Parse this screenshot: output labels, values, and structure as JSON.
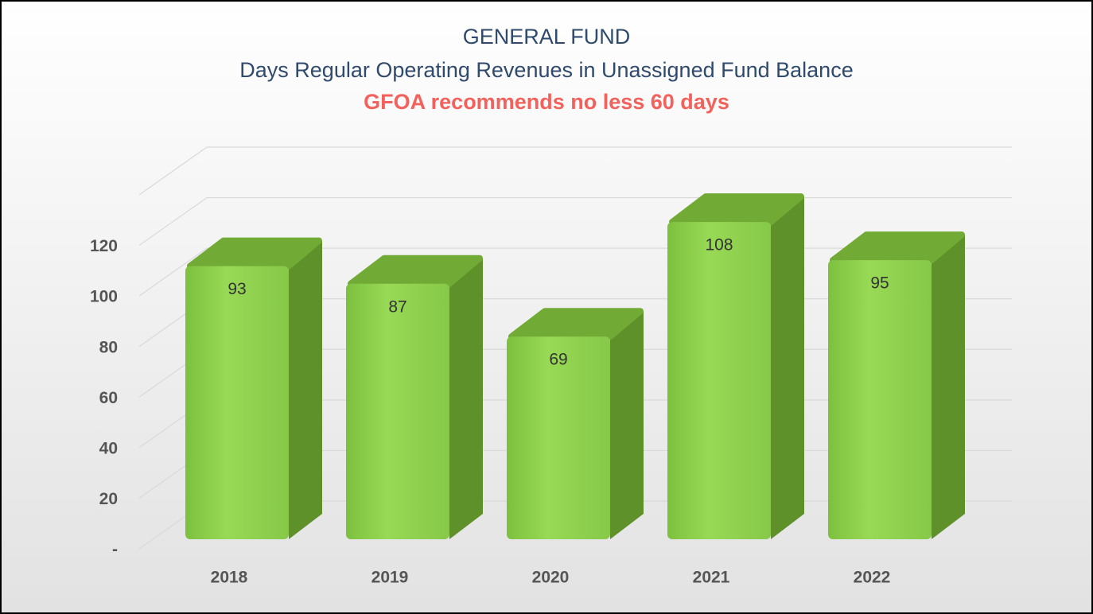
{
  "chart_data": {
    "type": "bar3d",
    "title": "GENERAL FUND",
    "subtitle": "Days Regular Operating Revenues in Unassigned Fund Balance",
    "annotation": "GFOA recommends no less 60 days",
    "categories": [
      "2018",
      "2019",
      "2020",
      "2021",
      "2022"
    ],
    "values": [
      93,
      87,
      69,
      108,
      95
    ],
    "color": "#8fd14f",
    "ylim": [
      0,
      140
    ],
    "yticks": [
      {
        "value": 0,
        "label": "-"
      },
      20,
      40,
      60,
      80,
      100,
      120
    ],
    "grid": true
  }
}
